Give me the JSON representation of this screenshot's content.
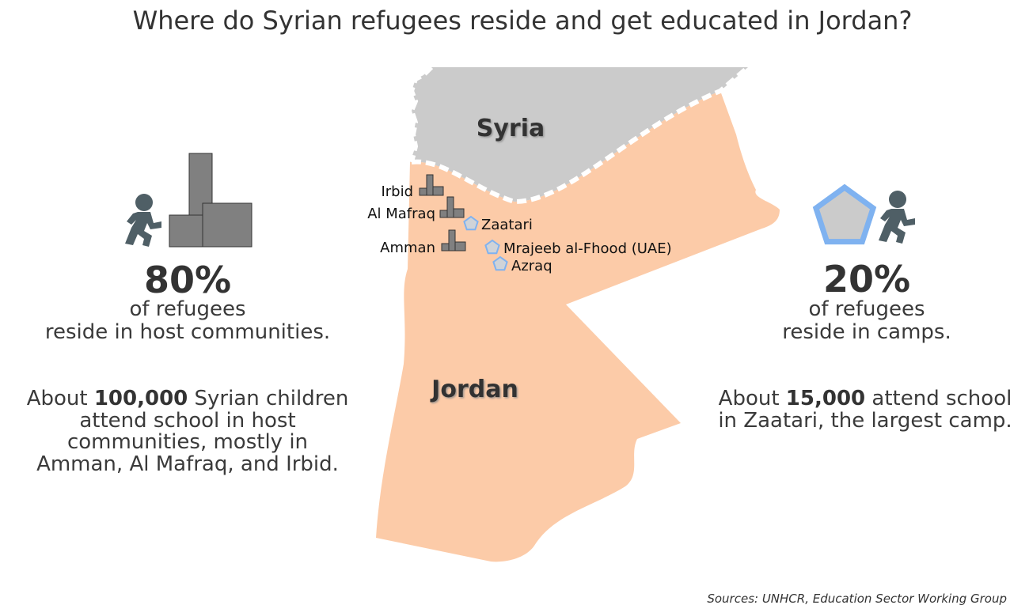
{
  "title": "Where do Syrian refugees reside and get educated in Jordan?",
  "map": {
    "countries": [
      "Syria",
      "Jordan"
    ],
    "cities": [
      "Irbid",
      "Al Mafraq",
      "Amman"
    ],
    "camps": [
      "Zaatari",
      "Mrajeeb al-Fhood (UAE)",
      "Azraq"
    ]
  },
  "host_communities": {
    "share": "80%",
    "caption": [
      "of refugees",
      "reside in host communities."
    ],
    "schooling": {
      "lead": "About",
      "figure": "100,000",
      "lines": [
        "Syrian children",
        "attend school in host",
        "communities, mostly in",
        "Amman, Al Mafraq, and Irbid."
      ]
    }
  },
  "camps": {
    "share": "20%",
    "caption": [
      "of refugees",
      "reside in camps."
    ],
    "schooling": {
      "lead": "About",
      "figure": "15,000",
      "lines": [
        "attend school",
        "in Zaatari, the largest camp."
      ]
    }
  },
  "source": "Sources: UNHCR, Education Sector Working Group"
}
